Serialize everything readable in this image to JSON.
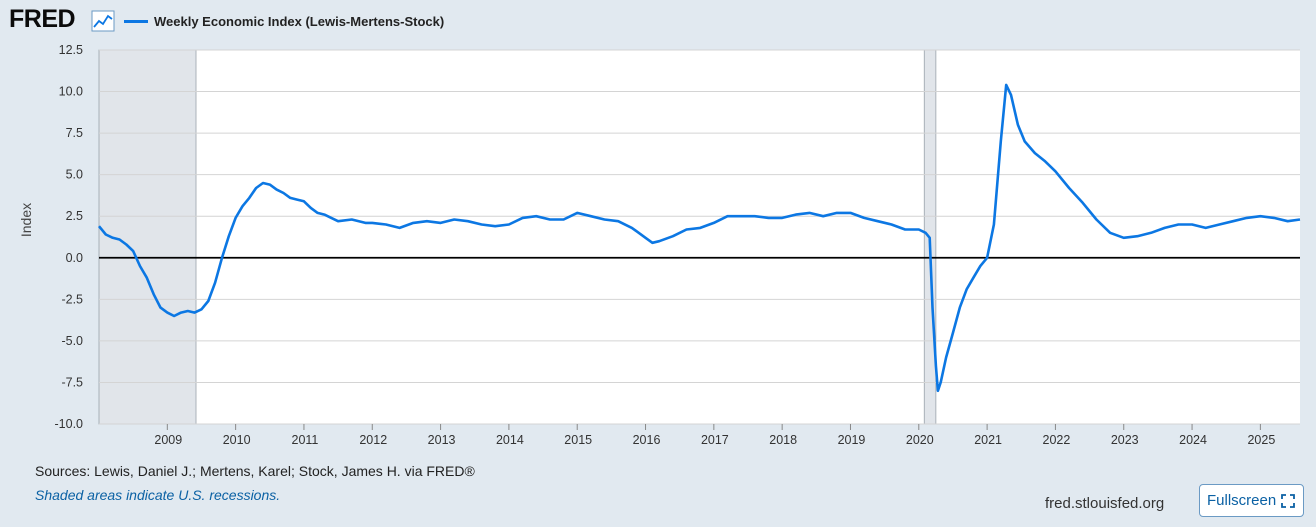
{
  "header": {
    "logo_text": "FRED",
    "logo_icon": "line-chart-icon",
    "legend_label": "Weekly Economic Index (Lewis-Mertens-Stock)",
    "series_color": "#0c77e3"
  },
  "footer": {
    "sources": "Sources: Lewis, Daniel J.; Mertens, Karel; Stock, James H. via FRED®",
    "recession_note": "Shaded areas indicate U.S. recessions.",
    "site": "fred.stlouisfed.org",
    "fullscreen_label": "Fullscreen",
    "fullscreen_icon": "expand-icon"
  },
  "chart_data": {
    "type": "line",
    "title": "",
    "xlabel": "",
    "ylabel": "Index",
    "xlim": [
      2008.0,
      2025.58
    ],
    "ylim": [
      -10.0,
      12.5
    ],
    "yticks": [
      -10.0,
      -7.5,
      -5.0,
      -2.5,
      0.0,
      2.5,
      5.0,
      7.5,
      10.0,
      12.5
    ],
    "ytick_labels": [
      "-10.0",
      "-7.5",
      "-5.0",
      "-2.5",
      "0.0",
      "2.5",
      "5.0",
      "7.5",
      "10.0",
      "12.5"
    ],
    "xtick_labels": [
      "2009",
      "2010",
      "2011",
      "2012",
      "2013",
      "2014",
      "2015",
      "2016",
      "2017",
      "2018",
      "2019",
      "2020",
      "2021",
      "2022",
      "2023",
      "2024",
      "2025"
    ],
    "grid": true,
    "legend": "top-left",
    "recessions": [
      [
        2008.0,
        2009.42
      ],
      [
        2020.08,
        2020.25
      ]
    ],
    "series": [
      {
        "name": "Weekly Economic Index (Lewis-Mertens-Stock)",
        "color": "#0c77e3",
        "points": [
          [
            2008.0,
            1.9
          ],
          [
            2008.1,
            1.4
          ],
          [
            2008.2,
            1.2
          ],
          [
            2008.3,
            1.1
          ],
          [
            2008.4,
            0.8
          ],
          [
            2008.5,
            0.4
          ],
          [
            2008.6,
            -0.5
          ],
          [
            2008.7,
            -1.2
          ],
          [
            2008.8,
            -2.2
          ],
          [
            2008.9,
            -3.0
          ],
          [
            2009.0,
            -3.3
          ],
          [
            2009.1,
            -3.5
          ],
          [
            2009.2,
            -3.3
          ],
          [
            2009.3,
            -3.2
          ],
          [
            2009.4,
            -3.3
          ],
          [
            2009.5,
            -3.1
          ],
          [
            2009.6,
            -2.6
          ],
          [
            2009.7,
            -1.5
          ],
          [
            2009.8,
            0.0
          ],
          [
            2009.9,
            1.3
          ],
          [
            2010.0,
            2.4
          ],
          [
            2010.1,
            3.1
          ],
          [
            2010.2,
            3.6
          ],
          [
            2010.3,
            4.2
          ],
          [
            2010.4,
            4.5
          ],
          [
            2010.5,
            4.4
          ],
          [
            2010.6,
            4.1
          ],
          [
            2010.7,
            3.9
          ],
          [
            2010.8,
            3.6
          ],
          [
            2010.9,
            3.5
          ],
          [
            2011.0,
            3.4
          ],
          [
            2011.1,
            3.0
          ],
          [
            2011.2,
            2.7
          ],
          [
            2011.3,
            2.6
          ],
          [
            2011.4,
            2.4
          ],
          [
            2011.5,
            2.2
          ],
          [
            2011.7,
            2.3
          ],
          [
            2011.9,
            2.1
          ],
          [
            2012.0,
            2.1
          ],
          [
            2012.2,
            2.0
          ],
          [
            2012.4,
            1.8
          ],
          [
            2012.6,
            2.1
          ],
          [
            2012.8,
            2.2
          ],
          [
            2013.0,
            2.1
          ],
          [
            2013.2,
            2.3
          ],
          [
            2013.4,
            2.2
          ],
          [
            2013.6,
            2.0
          ],
          [
            2013.8,
            1.9
          ],
          [
            2014.0,
            2.0
          ],
          [
            2014.2,
            2.4
          ],
          [
            2014.4,
            2.5
          ],
          [
            2014.6,
            2.3
          ],
          [
            2014.8,
            2.3
          ],
          [
            2015.0,
            2.7
          ],
          [
            2015.2,
            2.5
          ],
          [
            2015.4,
            2.3
          ],
          [
            2015.6,
            2.2
          ],
          [
            2015.8,
            1.8
          ],
          [
            2015.9,
            1.5
          ],
          [
            2016.0,
            1.2
          ],
          [
            2016.1,
            0.9
          ],
          [
            2016.2,
            1.0
          ],
          [
            2016.4,
            1.3
          ],
          [
            2016.6,
            1.7
          ],
          [
            2016.8,
            1.8
          ],
          [
            2017.0,
            2.1
          ],
          [
            2017.2,
            2.5
          ],
          [
            2017.4,
            2.5
          ],
          [
            2017.6,
            2.5
          ],
          [
            2017.8,
            2.4
          ],
          [
            2018.0,
            2.4
          ],
          [
            2018.2,
            2.6
          ],
          [
            2018.4,
            2.7
          ],
          [
            2018.6,
            2.5
          ],
          [
            2018.8,
            2.7
          ],
          [
            2019.0,
            2.7
          ],
          [
            2019.2,
            2.4
          ],
          [
            2019.4,
            2.2
          ],
          [
            2019.6,
            2.0
          ],
          [
            2019.8,
            1.7
          ],
          [
            2020.0,
            1.7
          ],
          [
            2020.1,
            1.5
          ],
          [
            2020.16,
            1.2
          ],
          [
            2020.2,
            -3.0
          ],
          [
            2020.25,
            -6.5
          ],
          [
            2020.28,
            -8.0
          ],
          [
            2020.32,
            -7.5
          ],
          [
            2020.4,
            -6.0
          ],
          [
            2020.5,
            -4.5
          ],
          [
            2020.6,
            -3.0
          ],
          [
            2020.7,
            -1.9
          ],
          [
            2020.8,
            -1.2
          ],
          [
            2020.9,
            -0.5
          ],
          [
            2021.0,
            0.0
          ],
          [
            2021.1,
            2.0
          ],
          [
            2021.2,
            7.0
          ],
          [
            2021.28,
            10.4
          ],
          [
            2021.35,
            9.8
          ],
          [
            2021.45,
            8.0
          ],
          [
            2021.55,
            7.0
          ],
          [
            2021.7,
            6.3
          ],
          [
            2021.85,
            5.8
          ],
          [
            2022.0,
            5.2
          ],
          [
            2022.2,
            4.2
          ],
          [
            2022.4,
            3.3
          ],
          [
            2022.6,
            2.3
          ],
          [
            2022.8,
            1.5
          ],
          [
            2023.0,
            1.2
          ],
          [
            2023.2,
            1.3
          ],
          [
            2023.4,
            1.5
          ],
          [
            2023.6,
            1.8
          ],
          [
            2023.8,
            2.0
          ],
          [
            2024.0,
            2.0
          ],
          [
            2024.2,
            1.8
          ],
          [
            2024.4,
            2.0
          ],
          [
            2024.6,
            2.2
          ],
          [
            2024.8,
            2.4
          ],
          [
            2025.0,
            2.5
          ],
          [
            2025.2,
            2.4
          ],
          [
            2025.4,
            2.2
          ],
          [
            2025.58,
            2.3
          ]
        ]
      }
    ]
  }
}
